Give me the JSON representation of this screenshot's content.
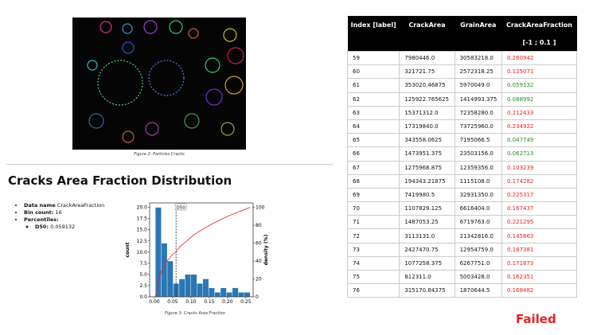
{
  "figure2": {
    "caption": "Figure 2: Particles Cracks"
  },
  "heading": "Cracks Area Fraction Distribution",
  "summary": {
    "data_name_label": "Data name",
    "data_name": "CrackAreaFraction",
    "bin_count_label": "Bin count:",
    "bin_count": 16,
    "percentiles_label": "Percentiles:",
    "d50_label": "D50:",
    "d50": 0.059132
  },
  "histogram": {
    "type": "histogram",
    "color": "#2a77b4",
    "bins": [
      0.0026,
      0.0188,
      0.035,
      0.0512,
      0.0674,
      0.0836,
      0.0998,
      0.116,
      0.1322,
      0.1484,
      0.1646,
      0.1808,
      0.197,
      0.2132,
      0.2294,
      0.2456,
      0.2618
    ],
    "counts": [
      20,
      12,
      8,
      3,
      4,
      5,
      5,
      3,
      4,
      2,
      1,
      2,
      1,
      2,
      1,
      1
    ],
    "xlim": [
      -0.013,
      0.27
    ],
    "ylim": [
      0,
      21
    ],
    "y2lim": [
      0,
      105
    ],
    "xticks": [
      {
        "value": 0,
        "label": "0.00"
      },
      {
        "value": 0.05,
        "label": "0.05"
      },
      {
        "value": 0.1,
        "label": "0.10"
      },
      {
        "value": 0.15,
        "label": "0.15"
      },
      {
        "value": 0.2,
        "label": "0.20"
      },
      {
        "value": 0.25,
        "label": "0.25"
      }
    ],
    "yticks": [
      {
        "value": 0,
        "label": "0.0"
      },
      {
        "value": 2.5,
        "label": "2.5"
      },
      {
        "value": 5,
        "label": "5.0"
      },
      {
        "value": 7.5,
        "label": "7.5"
      },
      {
        "value": 10,
        "label": "10.0"
      },
      {
        "value": 12.5,
        "label": "12.5"
      },
      {
        "value": 15,
        "label": "15.0"
      },
      {
        "value": 17.5,
        "label": "17.5"
      },
      {
        "value": 20,
        "label": "20.0"
      }
    ],
    "y2ticks": [
      0,
      20,
      40,
      60,
      80,
      100
    ],
    "ylabel": "count",
    "y2label": "density (%)",
    "density": {
      "color": "#e8201f",
      "x": [
        0.0026,
        0.01,
        0.019,
        0.035,
        0.051,
        0.059,
        0.07,
        0.09,
        0.11,
        0.13,
        0.16,
        0.2,
        0.23,
        0.2618
      ],
      "values": [
        0,
        15,
        28,
        40,
        48,
        50,
        56,
        63,
        70,
        75,
        82,
        90,
        95,
        100
      ]
    },
    "marker_label": "D50",
    "caption": "Figure 3: Cracks Area Fraction"
  },
  "table": {
    "columns": [
      "Index [label]",
      "CrackArea",
      "GrainArea",
      "CrackAreaFraction"
    ],
    "subheader": "[-1 ; 0.1 ]",
    "range": [
      -1,
      0.1
    ],
    "pass_color": "#1f8f1f",
    "fail_color": "#e8201f",
    "rows": [
      [
        "59",
        "7980446.0",
        "30583218.0",
        "0.260942"
      ],
      [
        "60",
        "321721.75",
        "2572318.25",
        "0.125071"
      ],
      [
        "61",
        "353020.46875",
        "5970049.0",
        "0.059132"
      ],
      [
        "62",
        "125922.765625",
        "1414993.375",
        "0.088992"
      ],
      [
        "63",
        "15371312.0",
        "72358280.0",
        "0.212433"
      ],
      [
        "64",
        "17319840.0",
        "73725960.0",
        "0.234922"
      ],
      [
        "65",
        "343558.0625",
        "7195066.5",
        "0.047749"
      ],
      [
        "66",
        "1473951.375",
        "23503156.0",
        "0.062713"
      ],
      [
        "67",
        "1275968.875",
        "12359356.0",
        "0.103239"
      ],
      [
        "68",
        "194343.21875",
        "1115108.0",
        "0.174282"
      ],
      [
        "69",
        "7419980.5",
        "32931350.0",
        "0.225317"
      ],
      [
        "70",
        "1107829.125",
        "6616404.0",
        "0.167437"
      ],
      [
        "71",
        "1487053.25",
        "6719763.0",
        "0.221295"
      ],
      [
        "72",
        "3113131.0",
        "21342816.0",
        "0.145863"
      ],
      [
        "73",
        "2427470.75",
        "12954759.0",
        "0.187381"
      ],
      [
        "74",
        "1077258.375",
        "6267751.0",
        "0.171873"
      ],
      [
        "75",
        "812311.0",
        "5003428.0",
        "0.162351"
      ],
      [
        "76",
        "315170.84375",
        "1870644.5",
        "0.168482"
      ]
    ]
  },
  "status": "Failed"
}
